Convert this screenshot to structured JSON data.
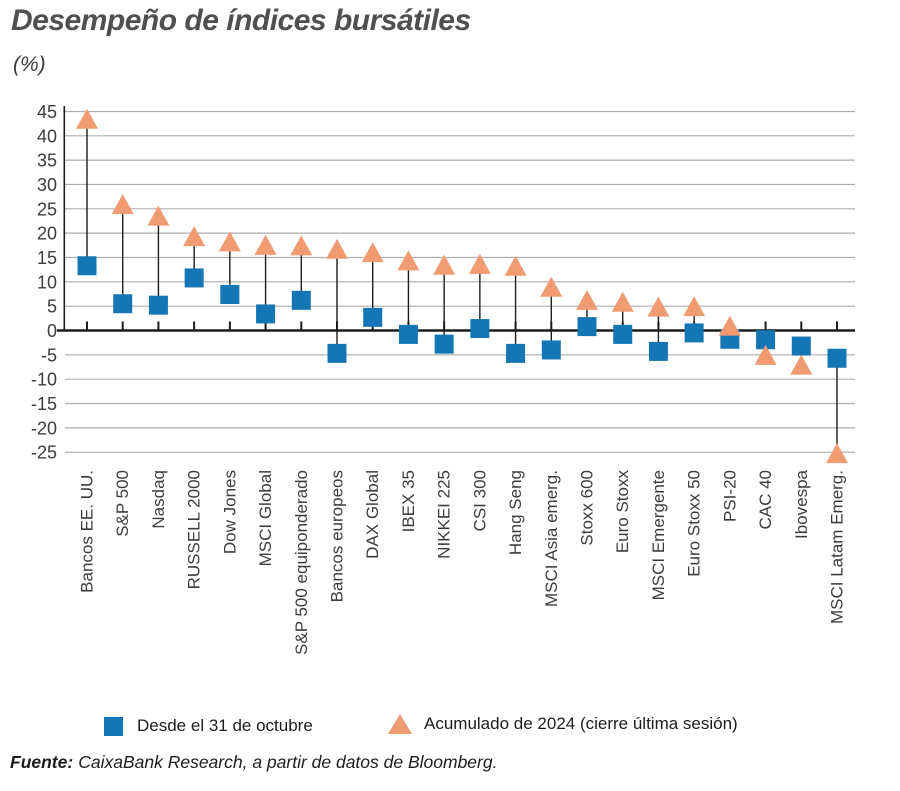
{
  "title": "Desempeño de índices bursátiles",
  "subtitle": "(%)",
  "legend": {
    "series1_label": "Desde el 31 de octubre",
    "series2_label": "Acumulado de 2024 (cierre última sesión)"
  },
  "footer": {
    "label": "Fuente:",
    "text": "CaixaBank Research, a partir de datos de Bloomberg."
  },
  "colors": {
    "blue": "#1576b5",
    "orange": "#f09b72",
    "grid": "#aeaeae",
    "axis": "#1d1d1b",
    "text_dark": "#3c3c3b"
  },
  "chart_data": {
    "type": "scatter",
    "title": "Desempeño de índices bursátiles",
    "ylabel": "(%)",
    "ylim": [
      -25,
      45
    ],
    "yticks": [
      45,
      40,
      35,
      30,
      25,
      20,
      15,
      10,
      5,
      0,
      -5,
      -10,
      -15,
      -20,
      -25
    ],
    "grid": true,
    "legend_position": "bottom",
    "categories": [
      "Bancos EE. UU.",
      "S&P 500",
      "Nasdaq",
      "RUSSELL 2000",
      "Dow Jones",
      "MSCI Global",
      "S&P 500 equiponderado",
      "Bancos europeos",
      "DAX Global",
      "IBEX 35",
      "NIKKEI 225",
      "CSI 300",
      "Hang Seng",
      "MSCI Asia emerg.",
      "Stoxx 600",
      "Euro Stoxx",
      "MSCI Emergente",
      "Euro Stoxx 50",
      "PSI-20",
      "CAC 40",
      "Ibovespa",
      "MSCI Latam Emerg."
    ],
    "series": [
      {
        "name": "Desde el 31 de octubre",
        "marker": "square",
        "color": "#1576b5",
        "values": [
          13.3,
          5.5,
          5.2,
          10.8,
          7.4,
          3.4,
          6.2,
          -4.7,
          2.7,
          -0.8,
          -2.8,
          0.4,
          -4.7,
          -4.0,
          0.8,
          -0.8,
          -4.3,
          -0.5,
          -1.8,
          -1.9,
          -3.2,
          -5.7
        ]
      },
      {
        "name": "Acumulado de 2024 (cierre última sesión)",
        "marker": "triangle",
        "color": "#f09b72",
        "values": [
          43.5,
          26.0,
          23.6,
          19.4,
          18.3,
          17.6,
          17.5,
          16.8,
          16.1,
          14.4,
          13.5,
          13.7,
          13.3,
          9.0,
          6.3,
          5.9,
          4.9,
          5.0,
          1.0,
          -5.0,
          -7.0,
          -25.2
        ]
      }
    ]
  }
}
